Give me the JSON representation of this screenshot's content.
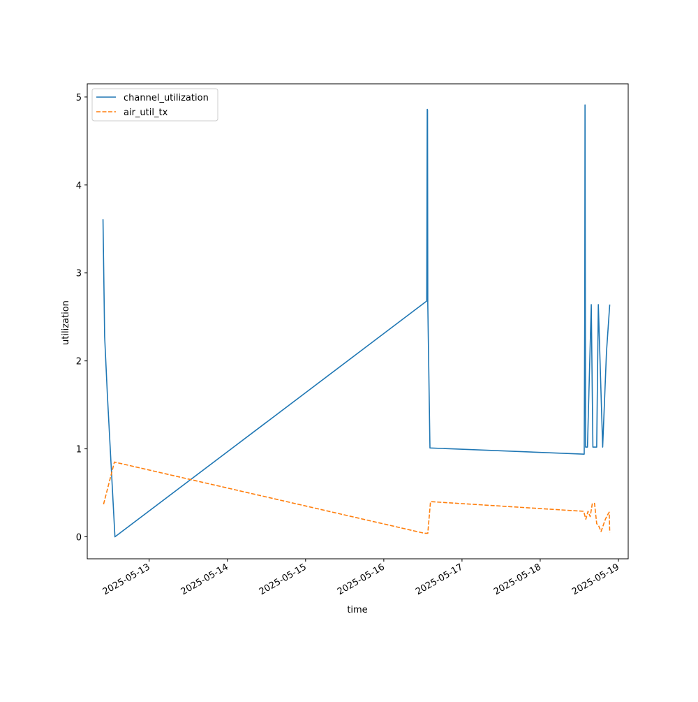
{
  "chart_data": {
    "type": "line",
    "title": "",
    "xlabel": "time",
    "ylabel": "utilization",
    "x_type": "datetime",
    "xlim": [
      "2025-05-12T05:00",
      "2025-05-19T03:00"
    ],
    "ylim": [
      -0.25,
      5.15
    ],
    "x_ticks": [
      "2025-05-13",
      "2025-05-14",
      "2025-05-15",
      "2025-05-16",
      "2025-05-17",
      "2025-05-18",
      "2025-05-19"
    ],
    "y_ticks": [
      0,
      1,
      2,
      3,
      4,
      5
    ],
    "grid": false,
    "legend_position": "upper-left",
    "series": [
      {
        "name": "channel_utilization",
        "color": "#1f77b4",
        "style": "solid",
        "points": [
          [
            "2025-05-12T09:50",
            3.61
          ],
          [
            "2025-05-12T10:20",
            2.28
          ],
          [
            "2025-05-12T11:10",
            1.62
          ],
          [
            "2025-05-12T13:30",
            0.0
          ],
          [
            "2025-05-16T13:10",
            2.68
          ],
          [
            "2025-05-16T13:20",
            4.86
          ],
          [
            "2025-05-16T13:25",
            4.85
          ],
          [
            "2025-05-16T13:30",
            2.65
          ],
          [
            "2025-05-16T14:10",
            1.01
          ],
          [
            "2025-05-18T13:30",
            0.94
          ],
          [
            "2025-05-18T13:40",
            2.57
          ],
          [
            "2025-05-18T13:45",
            4.91
          ],
          [
            "2025-05-18T13:55",
            1.02
          ],
          [
            "2025-05-18T14:30",
            1.02
          ],
          [
            "2025-05-18T15:40",
            2.64
          ],
          [
            "2025-05-18T16:10",
            1.02
          ],
          [
            "2025-05-18T17:20",
            1.02
          ],
          [
            "2025-05-18T17:50",
            2.64
          ],
          [
            "2025-05-18T19:10",
            1.02
          ],
          [
            "2025-05-18T20:20",
            2.1
          ],
          [
            "2025-05-18T21:20",
            2.64
          ]
        ]
      },
      {
        "name": "air_util_tx",
        "color": "#ff7f0e",
        "style": "dashed",
        "points": [
          [
            "2025-05-12T10:00",
            0.37
          ],
          [
            "2025-05-12T13:20",
            0.85
          ],
          [
            "2025-05-16T12:30",
            0.04
          ],
          [
            "2025-05-16T13:30",
            0.04
          ],
          [
            "2025-05-16T14:20",
            0.4
          ],
          [
            "2025-05-18T13:20",
            0.29
          ],
          [
            "2025-05-18T14:00",
            0.2
          ],
          [
            "2025-05-18T14:40",
            0.29
          ],
          [
            "2025-05-18T15:20",
            0.23
          ],
          [
            "2025-05-18T16:00",
            0.38
          ],
          [
            "2025-05-18T16:40",
            0.38
          ],
          [
            "2025-05-18T17:20",
            0.15
          ],
          [
            "2025-05-18T18:00",
            0.12
          ],
          [
            "2025-05-18T18:40",
            0.06
          ],
          [
            "2025-05-18T19:20",
            0.13
          ],
          [
            "2025-05-18T20:00",
            0.2
          ],
          [
            "2025-05-18T20:40",
            0.25
          ],
          [
            "2025-05-18T21:10",
            0.28
          ],
          [
            "2025-05-18T21:20",
            0.05
          ]
        ]
      }
    ]
  }
}
